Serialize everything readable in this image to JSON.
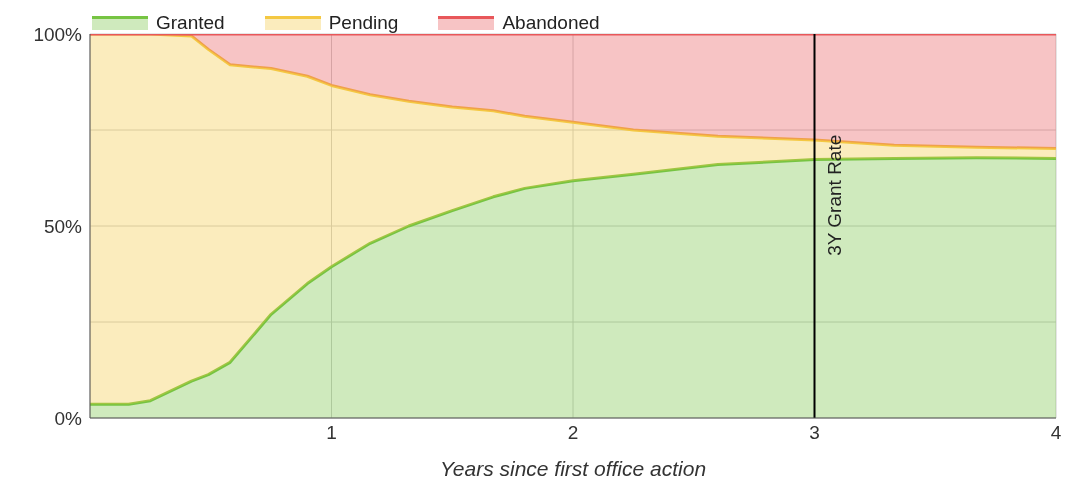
{
  "chart_data": {
    "type": "area",
    "stacked": true,
    "xlabel": "Years since first office action",
    "x": [
      0,
      0.16,
      0.25,
      0.42,
      0.49,
      0.58,
      0.75,
      0.9,
      1.0,
      1.16,
      1.32,
      1.5,
      1.67,
      1.8,
      2.0,
      2.25,
      2.6,
      3.0,
      3.33,
      3.67,
      4.0
    ],
    "series": [
      {
        "name": "Granted",
        "color": "#76c442",
        "values": [
          3.6,
          3.6,
          4.5,
          9.6,
          11.3,
          14.5,
          27,
          35,
          39.4,
          45.5,
          50,
          54,
          57.6,
          59.8,
          61.8,
          63.5,
          66,
          67.3,
          67.6,
          67.8,
          67.6
        ]
      },
      {
        "name": "Pending",
        "color": "#f4c842",
        "values": [
          96.4,
          96.4,
          95.5,
          89.9,
          84.7,
          77.5,
          64,
          54,
          47.2,
          38.7,
          32.5,
          27,
          22.4,
          18.8,
          15.2,
          11.5,
          7.4,
          5.1,
          3.4,
          2.7,
          2.6
        ]
      },
      {
        "name": "Abandoned",
        "color": "#e8575a",
        "values": [
          0,
          0,
          0,
          0.5,
          4,
          8,
          9,
          11,
          13.4,
          15.8,
          17.5,
          19,
          20,
          21.4,
          23,
          25,
          26.6,
          27.6,
          29,
          29.5,
          29.8
        ]
      }
    ],
    "xlim": [
      0,
      4
    ],
    "xticks": [
      1,
      2,
      3,
      4
    ],
    "ylim": [
      0,
      100
    ],
    "yticks": [
      {
        "value": 0,
        "label": "0%"
      },
      {
        "value": 25,
        "label": null
      },
      {
        "value": 50,
        "label": "50%"
      },
      {
        "value": 75,
        "label": null
      },
      {
        "value": 100,
        "label": "100%"
      }
    ],
    "grid": true,
    "legend": "top left",
    "ref_lines": [
      {
        "axis": "x",
        "value": 3,
        "label": "3Y Grant Rate",
        "color": "#000000"
      }
    ]
  }
}
